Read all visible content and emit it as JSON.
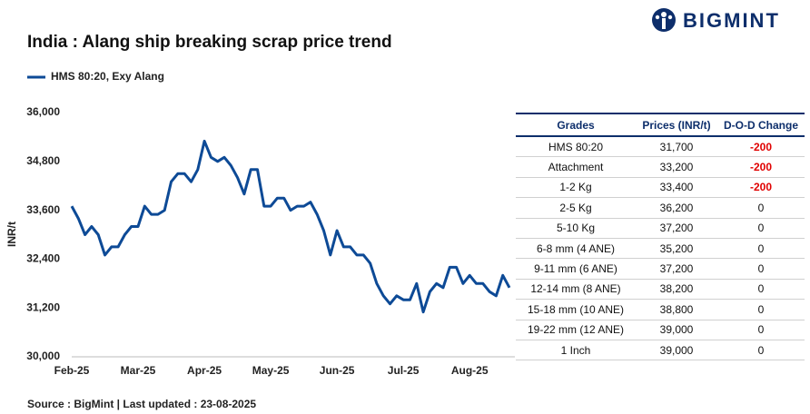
{
  "header": {
    "logo": "BIGMINT"
  },
  "chart_data": {
    "type": "line",
    "title": "India : Alang ship breaking scrap price trend",
    "y_label": "INR/t",
    "categories": [
      "Feb-25",
      null,
      null,
      null,
      null,
      null,
      null,
      null,
      null,
      null,
      "Mar-25",
      null,
      null,
      null,
      null,
      null,
      null,
      null,
      null,
      null,
      "Apr-25",
      null,
      null,
      null,
      null,
      null,
      null,
      null,
      null,
      null,
      "May-25",
      null,
      null,
      null,
      null,
      null,
      null,
      null,
      null,
      null,
      "Jun-25",
      null,
      null,
      null,
      null,
      null,
      null,
      null,
      null,
      null,
      "Jul-25",
      null,
      null,
      null,
      null,
      null,
      null,
      null,
      null,
      null,
      "Aug-25",
      null,
      null,
      null,
      null,
      null,
      null
    ],
    "series": [
      {
        "name": "HMS 80:20, Exy Alang",
        "color": "#0d4a96",
        "values": [
          33700,
          33400,
          33000,
          33200,
          33000,
          32500,
          32700,
          32700,
          33000,
          33200,
          33200,
          33700,
          33500,
          33500,
          33600,
          34300,
          34500,
          34500,
          34300,
          34600,
          35300,
          34900,
          34800,
          34900,
          34700,
          34400,
          34000,
          34600,
          34600,
          33700,
          33700,
          33900,
          33900,
          33600,
          33700,
          33700,
          33800,
          33500,
          33100,
          32500,
          33100,
          32700,
          32700,
          32500,
          32500,
          32300,
          31800,
          31500,
          31300,
          31500,
          31400,
          31400,
          31800,
          31100,
          31600,
          31800,
          31700,
          32200,
          32200,
          31800,
          32000,
          31800,
          31800,
          31600,
          31500,
          32000,
          31700
        ]
      }
    ],
    "ylim": [
      30000,
      36000
    ],
    "yticks": [
      {
        "value": 30000,
        "label": "30,000"
      },
      {
        "value": 31200,
        "label": "31,200"
      },
      {
        "value": 32400,
        "label": "32,400"
      },
      {
        "value": 33600,
        "label": "33,600"
      },
      {
        "value": 34800,
        "label": "34,800"
      },
      {
        "value": 36000,
        "label": "36,000"
      }
    ]
  },
  "table": {
    "columns": [
      "Grades",
      "Prices (INR/t)",
      "D-O-D Change"
    ],
    "rows": [
      [
        "HMS 80:20",
        "31,700",
        "-200"
      ],
      [
        "Attachment",
        "33,200",
        "-200"
      ],
      [
        "1-2 Kg",
        "33,400",
        "-200"
      ],
      [
        "2-5 Kg",
        "36,200",
        "0"
      ],
      [
        "5-10 Kg",
        "37,200",
        "0"
      ],
      [
        "6-8 mm (4 ANE)",
        "35,200",
        "0"
      ],
      [
        "9-11 mm (6 ANE)",
        "37,200",
        "0"
      ],
      [
        "12-14 mm (8 ANE)",
        "38,200",
        "0"
      ],
      [
        "15-18 mm (10 ANE)",
        "38,800",
        "0"
      ],
      [
        "19-22 mm (12 ANE)",
        "39,000",
        "0"
      ],
      [
        "1 Inch",
        "39,000",
        "0"
      ]
    ]
  },
  "footer": {
    "source": "Source : BigMint | Last updated : 23-08-2025"
  }
}
